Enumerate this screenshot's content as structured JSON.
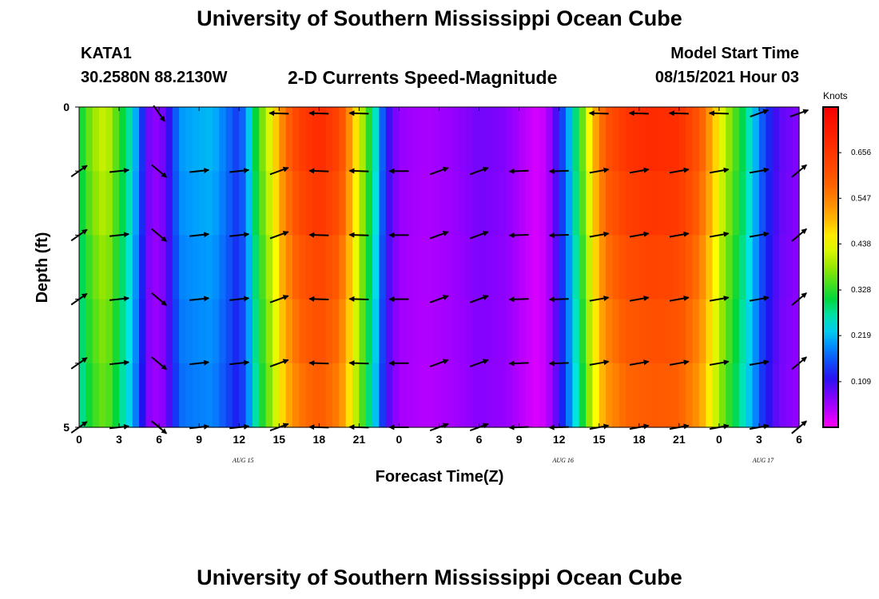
{
  "header": {
    "title": "University of Southern Mississippi Ocean Cube",
    "station_id": "KATA1",
    "coords": "30.2580N  88.2130W",
    "chart_title": "2-D Currents Speed-Magnitude",
    "start_label": "Model Start Time",
    "start_value": "08/15/2021 Hour 03"
  },
  "footer": {
    "title": "University of Southern Mississippi Ocean Cube"
  },
  "chart_data": {
    "type": "heatmap",
    "title": "2-D Currents Speed-Magnitude",
    "xlabel": "Forecast Time(Z)",
    "ylabel": "Depth (ft)",
    "x_tick_labels": [
      "0",
      "3",
      "6",
      "9",
      "12",
      "15",
      "18",
      "21",
      "0",
      "3",
      "6",
      "9",
      "12",
      "15",
      "18",
      "21",
      "0",
      "3",
      "6"
    ],
    "x_range_hours": [
      0,
      54
    ],
    "date_labels": [
      {
        "text": "AUG 15",
        "hour": 12.3
      },
      {
        "text": "AUG 16",
        "hour": 36.3
      },
      {
        "text": "AUG 17",
        "hour": 51.3
      }
    ],
    "y_tick_labels": [
      "0",
      "5"
    ],
    "ylim": [
      0,
      5
    ],
    "colorbar": {
      "label": "Knots",
      "ticks": [
        0.109,
        0.219,
        0.328,
        0.438,
        0.547,
        0.656
      ],
      "range": [
        0.0,
        0.765
      ]
    },
    "speed_profile": [
      {
        "h": 0,
        "v": 0.3
      },
      {
        "h": 1,
        "v": 0.38
      },
      {
        "h": 2,
        "v": 0.42
      },
      {
        "h": 3,
        "v": 0.33
      },
      {
        "h": 4,
        "v": 0.25
      },
      {
        "h": 4.6,
        "v": 0.16
      },
      {
        "h": 5.2,
        "v": 0.08
      },
      {
        "h": 6,
        "v": 0.06
      },
      {
        "h": 7,
        "v": 0.13
      },
      {
        "h": 7.5,
        "v": 0.2
      },
      {
        "h": 8.5,
        "v": 0.21
      },
      {
        "h": 10,
        "v": 0.22
      },
      {
        "h": 11,
        "v": 0.18
      },
      {
        "h": 12,
        "v": 0.14
      },
      {
        "h": 12.7,
        "v": 0.22
      },
      {
        "h": 13.4,
        "v": 0.33
      },
      {
        "h": 14.5,
        "v": 0.45
      },
      {
        "h": 15.4,
        "v": 0.56
      },
      {
        "h": 16.5,
        "v": 0.64
      },
      {
        "h": 18,
        "v": 0.68
      },
      {
        "h": 19.5,
        "v": 0.63
      },
      {
        "h": 20.5,
        "v": 0.5
      },
      {
        "h": 21.5,
        "v": 0.36
      },
      {
        "h": 22.3,
        "v": 0.25
      },
      {
        "h": 23,
        "v": 0.12
      },
      {
        "h": 24,
        "v": 0.06
      },
      {
        "h": 26,
        "v": 0.05
      },
      {
        "h": 28,
        "v": 0.06
      },
      {
        "h": 30,
        "v": 0.08
      },
      {
        "h": 32,
        "v": 0.07
      },
      {
        "h": 33.5,
        "v": 0.04
      },
      {
        "h": 34.5,
        "v": 0.02
      },
      {
        "h": 35.3,
        "v": 0.06
      },
      {
        "h": 36,
        "v": 0.12
      },
      {
        "h": 36.8,
        "v": 0.22
      },
      {
        "h": 37.5,
        "v": 0.32
      },
      {
        "h": 38.5,
        "v": 0.48
      },
      {
        "h": 39.5,
        "v": 0.6
      },
      {
        "h": 41,
        "v": 0.66
      },
      {
        "h": 43,
        "v": 0.68
      },
      {
        "h": 45,
        "v": 0.67
      },
      {
        "h": 46.5,
        "v": 0.6
      },
      {
        "h": 47.5,
        "v": 0.5
      },
      {
        "h": 48.5,
        "v": 0.4
      },
      {
        "h": 49.5,
        "v": 0.32
      },
      {
        "h": 50.5,
        "v": 0.24
      },
      {
        "h": 51.3,
        "v": 0.16
      },
      {
        "h": 52.5,
        "v": 0.09
      },
      {
        "h": 54,
        "v": 0.07
      }
    ],
    "depth_factors": [
      1.0,
      0.97,
      0.93,
      0.9,
      0.87
    ]
  }
}
